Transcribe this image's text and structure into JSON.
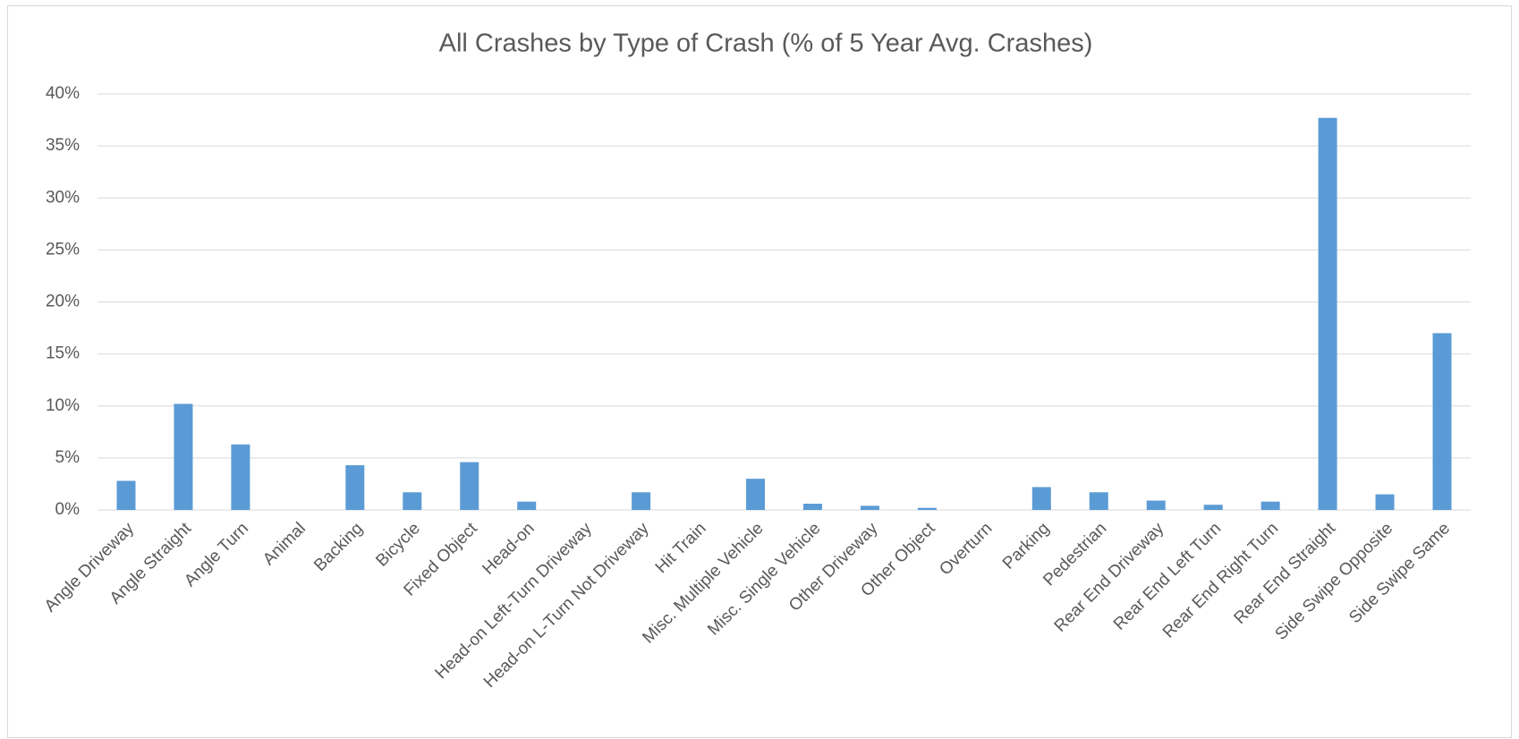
{
  "chart_data": {
    "type": "bar",
    "title": "All Crashes by Type of Crash (% of 5 Year Avg. Crashes)",
    "categories": [
      "Angle Driveway",
      "Angle Straight",
      "Angle Turn",
      "Animal",
      "Backing",
      "Bicycle",
      "Fixed Object",
      "Head-on",
      "Head-on Left-Turn Driveway",
      "Head-on L-Turn Not Driveway",
      "Hit Train",
      "Misc. Multiple Vehicle",
      "Misc. Single Vehicle",
      "Other Driveway",
      "Other Object",
      "Overturn",
      "Parking",
      "Pedestrian",
      "Rear End Driveway",
      "Rear End Left Turn",
      "Rear End Right Turn",
      "Rear End Straight",
      "Side Swipe Opposite",
      "Side Swipe Same"
    ],
    "values": [
      2.8,
      10.2,
      6.3,
      0,
      4.3,
      1.7,
      4.6,
      0.8,
      0,
      1.7,
      0,
      3.0,
      0.6,
      0.4,
      0.2,
      0,
      2.2,
      1.7,
      0.9,
      0.5,
      0.8,
      37.7,
      1.5,
      17.0
    ],
    "color": "#5b9bd5",
    "ylim": [
      0,
      40
    ],
    "yticks": [
      {
        "value": 0,
        "label": "0%"
      },
      {
        "value": 5,
        "label": "5%"
      },
      {
        "value": 10,
        "label": "10%"
      },
      {
        "value": 15,
        "label": "15%"
      },
      {
        "value": 20,
        "label": "20%"
      },
      {
        "value": 25,
        "label": "25%"
      },
      {
        "value": 30,
        "label": "30%"
      },
      {
        "value": 35,
        "label": "35%"
      },
      {
        "value": 40,
        "label": "40%"
      }
    ],
    "grid": true
  }
}
